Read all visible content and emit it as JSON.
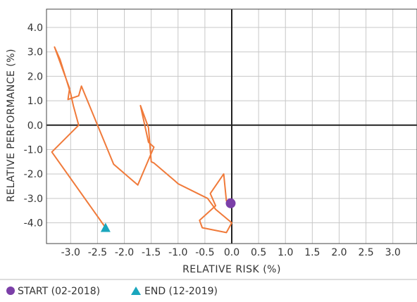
{
  "chart_data": {
    "type": "line",
    "xlabel": "RELATIVE RISK (%)",
    "ylabel": "RELATIVE PERFORMANCE (%)",
    "xlim": [
      -3.45,
      3.45
    ],
    "ylim": [
      -4.85,
      4.75
    ],
    "x_ticks": [
      -3.0,
      -2.5,
      -2.0,
      -1.5,
      -1.0,
      -0.5,
      0.0,
      0.5,
      1.0,
      1.5,
      2.0,
      2.5,
      3.0
    ],
    "x_tick_labels": [
      "-3.0",
      "-2.5",
      "-2.0",
      "-1.5",
      "-1.0",
      "-0.5",
      "0.0",
      "0.5",
      "1.0",
      "1.5",
      "2.0",
      "2.5",
      "3.0"
    ],
    "y_ticks": [
      4.0,
      3.0,
      2.0,
      1.0,
      0.0,
      -1.0,
      -2.0,
      -3.0,
      -4.0
    ],
    "y_tick_labels": [
      "4.0",
      "3.0",
      "2.0",
      "1.0",
      "0.0",
      "-1.0",
      "-2.0",
      "-3.0",
      "-4.0"
    ],
    "grid": true,
    "legend_position": "bottom-left",
    "colors": {
      "line": "#f07a3a",
      "start": "#7b3fa8",
      "end": "#1aa6bd",
      "grid": "#c8c8c8",
      "zero_axis": "#222222",
      "frame": "#444444"
    },
    "series": [
      {
        "x": [
          -0.02,
          -0.1,
          -0.15,
          -0.4,
          -0.3,
          -0.6,
          -0.55,
          -0.1,
          0.0,
          -0.3,
          -0.45,
          -1.0,
          -1.05,
          -1.45,
          -1.5,
          -1.55,
          -1.7,
          -1.55,
          -1.45,
          -1.75,
          -2.2,
          -2.8,
          -2.85,
          -3.05,
          -3.02,
          -3.3,
          -3.2,
          -3.0,
          -2.95,
          -2.85,
          -3.35,
          -2.35
        ],
        "y": [
          -3.2,
          -3.1,
          -2.0,
          -2.8,
          -3.3,
          -3.9,
          -4.2,
          -4.4,
          -4.0,
          -3.45,
          -3.0,
          -2.4,
          -2.3,
          -1.55,
          -1.5,
          -0.1,
          0.8,
          -0.7,
          -0.9,
          -2.45,
          -1.6,
          1.6,
          1.2,
          1.05,
          1.5,
          3.2,
          2.7,
          1.3,
          0.8,
          0.0,
          -1.1,
          -4.2
        ]
      }
    ],
    "markers": {
      "start": {
        "x": -0.02,
        "y": -3.2,
        "label": "START (02-2018)"
      },
      "end": {
        "x": -2.35,
        "y": -4.2,
        "label": "END (12-2019)"
      }
    }
  }
}
